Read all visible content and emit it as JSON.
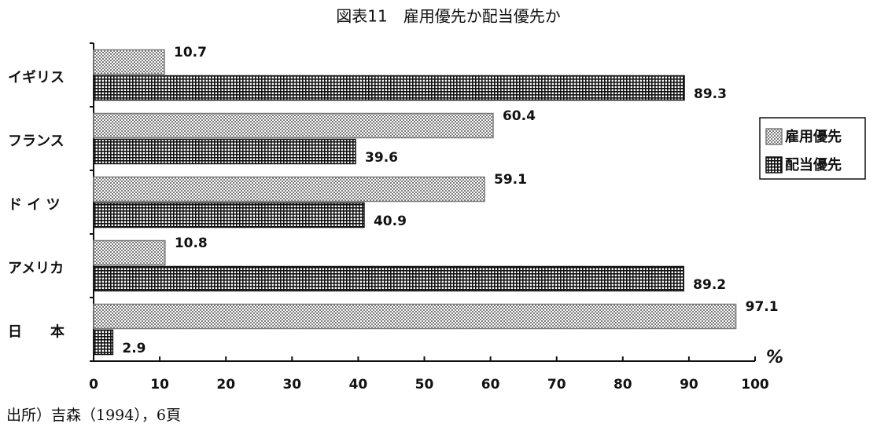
{
  "chart_data": {
    "type": "hbar",
    "title": "図表11　雇用優先か配当優先か",
    "categories": [
      "イギリス",
      "フランス",
      "ド イ ツ",
      "アメリカ",
      "日　　本"
    ],
    "series": [
      {
        "name": "雇用優先",
        "color": "#7a7a7a",
        "values": [
          10.7,
          60.4,
          59.1,
          10.8,
          97.1
        ]
      },
      {
        "name": "配当優先",
        "color": "#111111",
        "values": [
          89.3,
          39.6,
          40.9,
          89.2,
          2.9
        ]
      }
    ],
    "xlim": [
      0,
      100
    ],
    "xticks": [
      0,
      10,
      20,
      30,
      40,
      50,
      60,
      70,
      80,
      90,
      100
    ],
    "x_label": "%",
    "legend": "right",
    "grid": false,
    "source": "出所）吉森（1994），6頁"
  }
}
